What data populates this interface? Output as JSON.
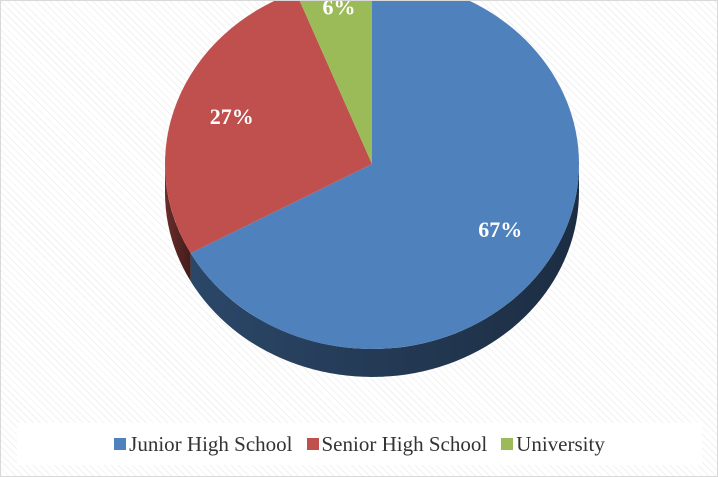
{
  "chart_data": {
    "type": "pie",
    "categories": [
      "Junior High School",
      "Senior High School",
      "University"
    ],
    "values": [
      67,
      27,
      6
    ],
    "data_labels": [
      "67%",
      "27%",
      "6%"
    ],
    "colors": [
      "#4f81bd",
      "#c0504d",
      "#9bbb59"
    ],
    "legend_position": "bottom",
    "style": "3d"
  }
}
